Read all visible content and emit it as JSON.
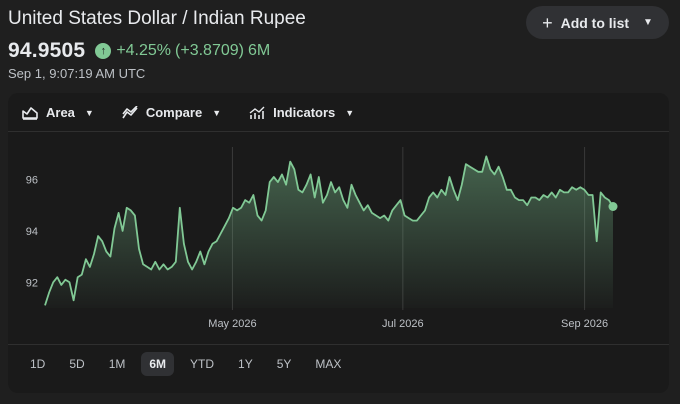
{
  "header": {
    "title": "United States Dollar / Indian Rupee",
    "add_to_list_label": "Add to list",
    "price": "94.9505",
    "change_percent": "+4.25%",
    "change_abs": "(+3.8709)",
    "change_period": "6M",
    "timestamp": "Sep 1, 9:07:19 AM UTC"
  },
  "toolbar": {
    "area_label": "Area",
    "compare_label": "Compare",
    "indicators_label": "Indicators"
  },
  "ranges": [
    "1D",
    "5D",
    "1M",
    "6M",
    "YTD",
    "1Y",
    "5Y",
    "MAX"
  ],
  "active_range": "6M",
  "colors": {
    "positive": "#81c995",
    "background": "#1f1f1f"
  },
  "chart_data": {
    "type": "area",
    "ylim": [
      91,
      97.5
    ],
    "yticks": [
      92,
      94,
      96
    ],
    "ytick_labels": [
      "92",
      "94",
      "96"
    ],
    "xlabels": [
      "May 2026",
      "Jul 2026",
      "Sep 2026"
    ],
    "xlabel_positions": [
      0.33,
      0.63,
      0.95
    ],
    "grid": "vertical",
    "values": [
      91.1,
      91.6,
      92.0,
      92.2,
      91.9,
      92.1,
      92.0,
      91.3,
      92.2,
      92.3,
      92.9,
      92.6,
      93.1,
      93.8,
      93.6,
      93.2,
      93.0,
      94.1,
      94.7,
      94.0,
      94.9,
      94.8,
      94.6,
      93.3,
      92.7,
      92.6,
      92.5,
      92.8,
      92.5,
      92.7,
      92.5,
      92.6,
      92.8,
      94.9,
      93.5,
      92.8,
      92.5,
      92.8,
      93.2,
      92.7,
      93.2,
      93.5,
      93.6,
      93.9,
      94.2,
      94.5,
      94.9,
      94.8,
      94.9,
      95.2,
      95.1,
      95.4,
      94.6,
      94.4,
      94.8,
      95.9,
      96.1,
      95.9,
      96.2,
      95.8,
      96.7,
      96.4,
      95.6,
      95.5,
      95.8,
      96.2,
      95.3,
      96.1,
      95.1,
      95.4,
      95.9,
      95.5,
      95.7,
      95.2,
      94.9,
      95.8,
      95.4,
      95.1,
      94.8,
      95.0,
      94.7,
      94.6,
      94.5,
      94.6,
      94.4,
      94.8,
      95.0,
      95.2,
      94.6,
      94.5,
      94.4,
      94.4,
      94.6,
      94.8,
      95.3,
      95.5,
      95.3,
      95.6,
      95.4,
      96.1,
      95.6,
      95.2,
      95.8,
      96.6,
      96.5,
      96.4,
      96.3,
      96.3,
      96.9,
      96.4,
      96.2,
      96.5,
      96.1,
      95.6,
      95.6,
      95.3,
      95.2,
      95.2,
      95.0,
      95.3,
      95.3,
      95.2,
      95.4,
      95.3,
      95.5,
      95.3,
      95.6,
      95.5,
      95.5,
      95.7,
      95.6,
      95.7,
      95.6,
      95.4,
      95.4,
      93.6,
      95.5,
      95.3,
      95.2,
      94.9505
    ]
  }
}
